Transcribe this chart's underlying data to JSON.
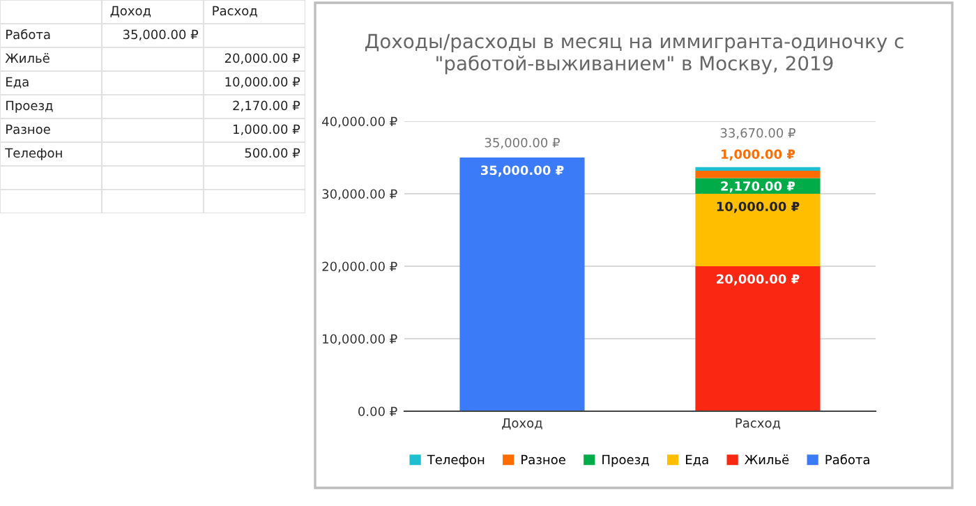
{
  "chart_data": [
    {
      "type": "other",
      "categories": [
        "Доход",
        "Расход"
      ],
      "y_categories": [
        "Работа",
        "Жильё",
        "Еда",
        "Проезд",
        "Разное",
        "Телефон"
      ],
      "cell_labels": [
        [
          "35,000.00 ₽",
          null
        ],
        [
          null,
          "20,000.00 ₽"
        ],
        [
          null,
          "10,000.00 ₽"
        ],
        [
          null,
          "2,170.00 ₽"
        ],
        [
          null,
          "1,000.00 ₽"
        ],
        [
          null,
          "500.00 ₽"
        ]
      ]
    },
    {
      "type": "bar",
      "title": "Доходы/расходы в месяц на иммигранта-одиночку с \"работой-выживанием\" в Москву, 2019",
      "categories": [
        "Доход",
        "Расход"
      ],
      "stacked": true,
      "series": [
        {
          "name": "Работа",
          "color": "#3b7bf8",
          "values": [
            35000,
            null
          ],
          "value_labels": [
            "35,000.00 ₽",
            null
          ]
        },
        {
          "name": "Жильё",
          "color": "#fa2812",
          "values": [
            null,
            20000
          ],
          "value_labels": [
            null,
            "20,000.00 ₽"
          ]
        },
        {
          "name": "Еда",
          "color": "#ffbf00",
          "values": [
            null,
            10000
          ],
          "value_labels": [
            null,
            "10,000.00 ₽"
          ]
        },
        {
          "name": "Проезд",
          "color": "#00ac47",
          "values": [
            null,
            2170
          ],
          "value_labels": [
            null,
            "2,170.00 ₽"
          ]
        },
        {
          "name": "Разное",
          "color": "#ff6d00",
          "values": [
            null,
            1000
          ],
          "value_labels": [
            null,
            "1,000.00 ₽"
          ]
        },
        {
          "name": "Телефон",
          "color": "#1ec0cf",
          "values": [
            null,
            500
          ],
          "value_labels": [
            null,
            null
          ]
        }
      ],
      "totals": [
        "35,000.00 ₽",
        "33,670.00 ₽"
      ],
      "ylim": [
        0,
        40000
      ],
      "yticks": [
        {
          "value": 0,
          "label": "0.00 ₽"
        },
        {
          "value": 10000,
          "label": "10,000.00 ₽"
        },
        {
          "value": 20000,
          "label": "20,000.00 ₽"
        },
        {
          "value": 30000,
          "label": "30,000.00 ₽"
        },
        {
          "value": 40000,
          "label": "40,000.00 ₽"
        }
      ],
      "grid": "y",
      "legend": "bottom"
    }
  ]
}
